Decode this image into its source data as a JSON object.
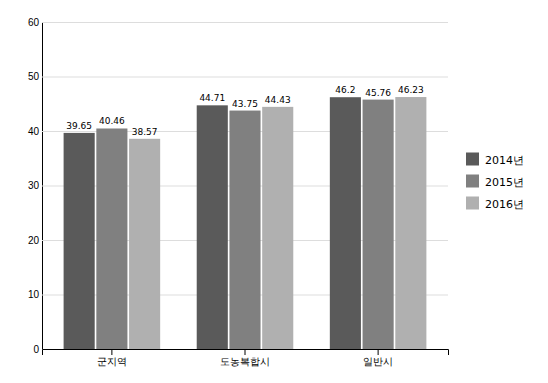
{
  "chart_data": {
    "type": "bar",
    "categories": [
      "군지역",
      "도농복합시",
      "일반시"
    ],
    "series": [
      {
        "name": "2014년",
        "color": "#5a5a5a",
        "values": [
          39.65,
          44.71,
          46.2
        ]
      },
      {
        "name": "2015년",
        "color": "#808080",
        "values": [
          40.46,
          43.75,
          45.76
        ]
      },
      {
        "name": "2016년",
        "color": "#b0b0b0",
        "values": [
          38.57,
          44.43,
          46.23
        ]
      }
    ],
    "ylim": [
      0,
      60
    ],
    "yticks": [
      0,
      10,
      20,
      30,
      40,
      50,
      60
    ],
    "grid": true,
    "data_labels": true,
    "legend": "right"
  }
}
